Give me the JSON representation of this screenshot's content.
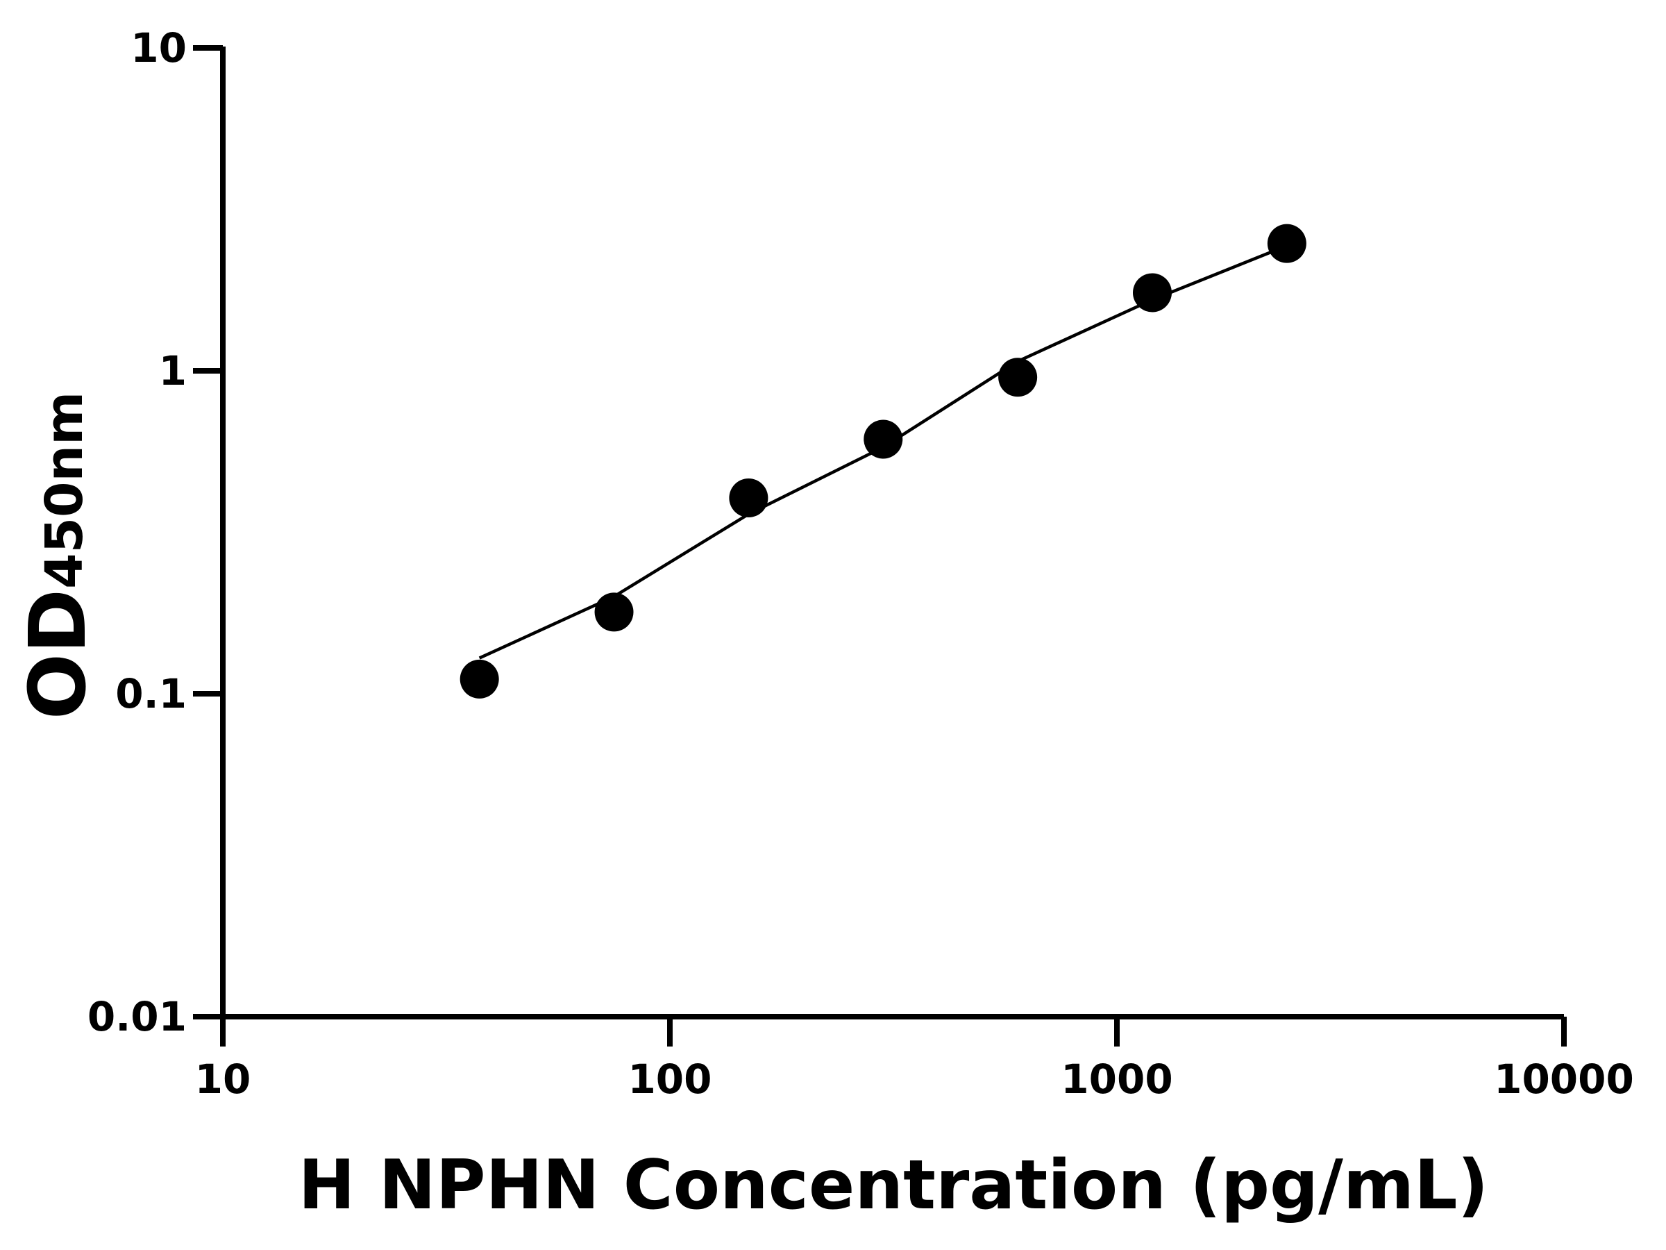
{
  "chart_data": {
    "type": "scatter",
    "xlabel": "H NPHN Concentration (pg/mL)",
    "ylabel": "OD",
    "ylabel_sub": "450nm",
    "xscale": "log",
    "yscale": "log",
    "xlim": [
      10,
      10000
    ],
    "xticks": [
      10,
      100,
      1000,
      10000
    ],
    "ylim": [
      0.01,
      10
    ],
    "yticks": [
      0.01,
      0.1,
      1,
      10
    ],
    "series": [
      {
        "kind": "points",
        "color": "#000000",
        "x": [
          37.5,
          75,
          150,
          300,
          600,
          1200,
          2400
        ],
        "values": [
          0.111,
          0.179,
          0.404,
          0.614,
          0.955,
          1.746,
          2.48
        ]
      },
      {
        "kind": "curve",
        "color": "#000000",
        "x": [
          37.5,
          75,
          150,
          300,
          600,
          1200,
          2400
        ],
        "values": [
          0.129,
          0.2,
          0.36,
          0.58,
          1.07,
          1.66,
          2.44
        ]
      }
    ]
  }
}
